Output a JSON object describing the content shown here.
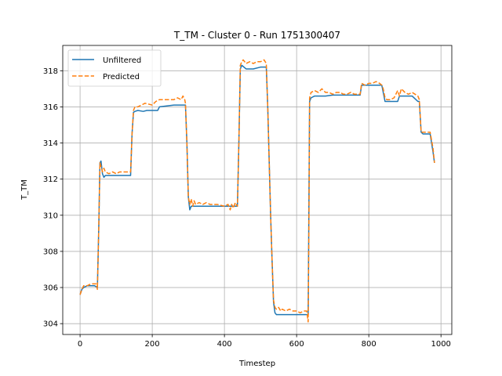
{
  "chart_data": {
    "type": "line",
    "title": "T_TM - Cluster 0 - Run 1751300407",
    "xlabel": "Timestep",
    "ylabel": "T_TM",
    "xlim": [
      -48,
      1030
    ],
    "ylim": [
      303.4,
      319.4
    ],
    "xticks": [
      0,
      200,
      400,
      600,
      800,
      1000
    ],
    "yticks": [
      304,
      306,
      308,
      310,
      312,
      314,
      316,
      318
    ],
    "grid": true,
    "legend_position": "upper-left",
    "series": [
      {
        "name": "Unfiltered",
        "color": "#1f77b4",
        "style": "solid",
        "x": [
          0,
          5,
          10,
          20,
          30,
          40,
          48,
          52,
          55,
          58,
          62,
          66,
          70,
          80,
          100,
          120,
          140,
          144,
          148,
          152,
          160,
          175,
          185,
          200,
          215,
          220,
          240,
          260,
          280,
          292,
          296,
          300,
          304,
          308,
          320,
          340,
          360,
          380,
          400,
          420,
          436,
          440,
          444,
          448,
          460,
          480,
          500,
          516,
          520,
          524,
          528,
          532,
          536,
          540,
          544,
          550,
          560,
          580,
          600,
          620,
          628,
          632,
          636,
          640,
          650,
          660,
          680,
          700,
          720,
          740,
          760,
          776,
          780,
          790,
          800,
          820,
          836,
          840,
          845,
          850,
          860,
          870,
          880,
          885,
          890,
          900,
          920,
          936,
          940,
          945,
          950,
          960,
          970,
          978,
          982
        ],
        "y": [
          305.6,
          305.9,
          306.0,
          306.1,
          306.1,
          306.1,
          306.0,
          309.5,
          312.9,
          313.0,
          312.3,
          312.1,
          312.2,
          312.2,
          312.2,
          312.2,
          312.2,
          314.5,
          315.7,
          315.75,
          315.8,
          315.75,
          315.8,
          315.8,
          315.8,
          316.0,
          316.05,
          316.1,
          316.1,
          316.1,
          314.0,
          311.0,
          310.3,
          310.5,
          310.5,
          310.5,
          310.5,
          310.5,
          310.5,
          310.5,
          310.5,
          314.0,
          318.1,
          318.3,
          318.1,
          318.1,
          318.2,
          318.2,
          316.0,
          313.0,
          310.0,
          307.5,
          305.2,
          304.6,
          304.5,
          304.5,
          304.5,
          304.5,
          304.5,
          304.5,
          304.5,
          304.5,
          316.3,
          316.5,
          316.6,
          316.6,
          316.6,
          316.65,
          316.65,
          316.65,
          316.65,
          316.65,
          317.2,
          317.2,
          317.2,
          317.2,
          317.2,
          316.8,
          316.3,
          316.3,
          316.3,
          316.3,
          316.3,
          316.6,
          316.6,
          316.6,
          316.6,
          316.3,
          316.3,
          314.6,
          314.5,
          314.5,
          314.5,
          313.5,
          312.9
        ]
      },
      {
        "name": "Predicted",
        "color": "#ff7f0e",
        "style": "dashed",
        "x": [
          0,
          5,
          10,
          20,
          30,
          40,
          45,
          48,
          52,
          55,
          58,
          62,
          66,
          70,
          80,
          90,
          100,
          110,
          120,
          130,
          140,
          144,
          148,
          152,
          160,
          170,
          180,
          200,
          210,
          220,
          240,
          260,
          270,
          280,
          285,
          290,
          292,
          296,
          300,
          304,
          308,
          312,
          316,
          320,
          330,
          340,
          350,
          360,
          380,
          400,
          410,
          416,
          420,
          425,
          430,
          436,
          440,
          444,
          448,
          452,
          456,
          460,
          470,
          480,
          490,
          500,
          510,
          516,
          520,
          524,
          528,
          532,
          536,
          540,
          544,
          550,
          556,
          560,
          570,
          580,
          590,
          600,
          610,
          620,
          628,
          632,
          634,
          636,
          640,
          650,
          660,
          670,
          680,
          690,
          700,
          710,
          720,
          730,
          740,
          750,
          760,
          770,
          776,
          780,
          790,
          800,
          810,
          820,
          830,
          836,
          840,
          845,
          850,
          860,
          870,
          880,
          885,
          890,
          900,
          910,
          920,
          936,
          940,
          945,
          950,
          960,
          970,
          978,
          982
        ],
        "y": [
          305.6,
          305.9,
          306.1,
          306.1,
          306.2,
          306.2,
          306.2,
          305.9,
          309.5,
          312.9,
          312.7,
          312.4,
          312.6,
          312.4,
          312.3,
          312.4,
          312.3,
          312.4,
          312.4,
          312.4,
          312.4,
          314.5,
          315.8,
          316.0,
          316.0,
          316.1,
          316.2,
          316.1,
          316.3,
          316.4,
          316.4,
          316.4,
          316.5,
          316.4,
          316.6,
          316.4,
          316.2,
          314.0,
          311.0,
          310.6,
          310.9,
          310.5,
          310.8,
          310.6,
          310.7,
          310.6,
          310.7,
          310.6,
          310.6,
          310.5,
          310.6,
          310.3,
          310.6,
          310.4,
          310.7,
          310.5,
          314.0,
          318.3,
          318.5,
          318.6,
          318.5,
          318.4,
          318.5,
          318.4,
          318.5,
          318.5,
          318.6,
          318.4,
          316.0,
          313.0,
          310.0,
          307.5,
          305.3,
          304.9,
          304.8,
          304.9,
          304.7,
          304.8,
          304.7,
          304.8,
          304.7,
          304.7,
          304.6,
          304.7,
          304.7,
          304.1,
          309.0,
          316.5,
          316.8,
          316.9,
          316.8,
          317.0,
          316.8,
          316.8,
          316.7,
          316.8,
          316.8,
          316.7,
          316.7,
          316.8,
          316.7,
          316.7,
          316.7,
          317.3,
          317.2,
          317.3,
          317.3,
          317.4,
          317.3,
          317.2,
          317.0,
          316.5,
          316.4,
          316.4,
          316.5,
          316.9,
          316.6,
          317.0,
          316.8,
          316.7,
          316.8,
          316.6,
          316.4,
          314.6,
          314.6,
          314.6,
          314.6,
          313.7,
          312.9
        ]
      }
    ]
  }
}
